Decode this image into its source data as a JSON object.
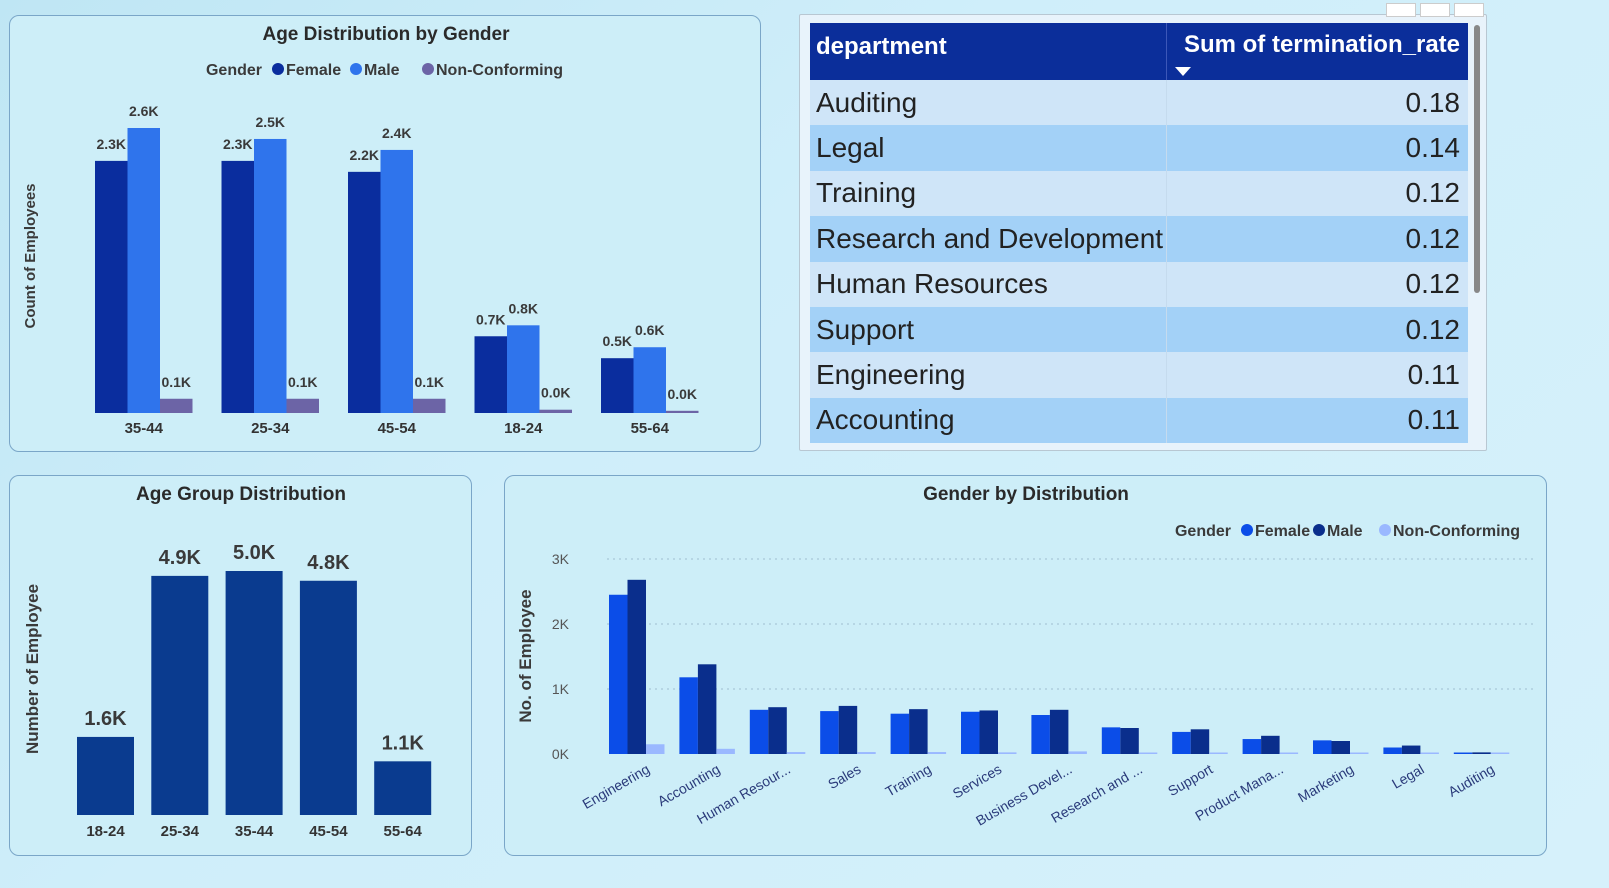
{
  "card1": {
    "title": "Age Distribution by Gender",
    "legend_title": "Gender",
    "ylabel": "Count of Employees"
  },
  "card2": {
    "columns": [
      "department",
      "Sum of termination_rate"
    ],
    "rows": [
      {
        "department": "Auditing",
        "value": "0.18"
      },
      {
        "department": "Legal",
        "value": "0.14"
      },
      {
        "department": "Training",
        "value": "0.12"
      },
      {
        "department": "Research and Development",
        "value": "0.12"
      },
      {
        "department": "Human Resources",
        "value": "0.12"
      },
      {
        "department": "Support",
        "value": "0.12"
      },
      {
        "department": "Engineering",
        "value": "0.11"
      },
      {
        "department": "Accounting",
        "value": "0.11"
      }
    ]
  },
  "card3": {
    "title": "Age Group Distribution",
    "ylabel": "Number of Employee"
  },
  "card4": {
    "title": "Gender by Distribution",
    "legend_title": "Gender",
    "ylabel": "No. of Employee"
  },
  "chart_data": [
    {
      "type": "bar",
      "title": "Age Distribution by Gender",
      "ylabel": "Count of Employees",
      "categories": [
        "35-44",
        "25-34",
        "45-54",
        "18-24",
        "55-64"
      ],
      "series": [
        {
          "name": "Female",
          "color": "#0a2d9e",
          "values": [
            2300,
            2300,
            2200,
            700,
            500
          ],
          "labels": [
            "2.3K",
            "2.3K",
            "2.2K",
            "0.7K",
            "0.5K"
          ]
        },
        {
          "name": "Male",
          "color": "#2f74ec",
          "values": [
            2600,
            2500,
            2400,
            800,
            600
          ],
          "labels": [
            "2.6K",
            "2.5K",
            "2.4K",
            "0.8K",
            "0.6K"
          ]
        },
        {
          "name": "Non-Conforming",
          "color": "#6c64a6",
          "values": [
            130,
            130,
            130,
            30,
            20
          ],
          "labels": [
            "0.1K",
            "0.1K",
            "0.1K",
            "0.0K",
            "0.0K"
          ]
        }
      ]
    },
    {
      "type": "bar",
      "title": "Age Group Distribution",
      "ylabel": "Number of Employee",
      "categories": [
        "18-24",
        "25-34",
        "35-44",
        "45-54",
        "55-64"
      ],
      "values": [
        1600,
        4900,
        5000,
        4800,
        1100
      ],
      "labels": [
        "1.6K",
        "4.9K",
        "5.0K",
        "4.8K",
        "1.1K"
      ],
      "color": "#0a3b8f"
    },
    {
      "type": "bar",
      "title": "Gender by Distribution",
      "ylabel": "No. of Employee",
      "ylim": [
        0,
        3000
      ],
      "yticks": [
        "0K",
        "1K",
        "2K",
        "3K"
      ],
      "categories": [
        "Engineering",
        "Accounting",
        "Human Resour...",
        "Sales",
        "Training",
        "Services",
        "Business Devel...",
        "Research and ...",
        "Support",
        "Product Mana...",
        "Marketing",
        "Legal",
        "Auditing"
      ],
      "series": [
        {
          "name": "Female",
          "color": "#0b4de8",
          "values": [
            2450,
            1180,
            680,
            660,
            620,
            650,
            600,
            410,
            340,
            230,
            210,
            100,
            20
          ]
        },
        {
          "name": "Male",
          "color": "#0a2e8c",
          "values": [
            2680,
            1380,
            720,
            740,
            690,
            670,
            680,
            400,
            380,
            280,
            200,
            130,
            25
          ]
        },
        {
          "name": "Non-Conforming",
          "color": "#9ab8ff",
          "values": [
            150,
            80,
            30,
            30,
            30,
            25,
            40,
            15,
            15,
            10,
            10,
            5,
            2
          ]
        }
      ]
    }
  ]
}
